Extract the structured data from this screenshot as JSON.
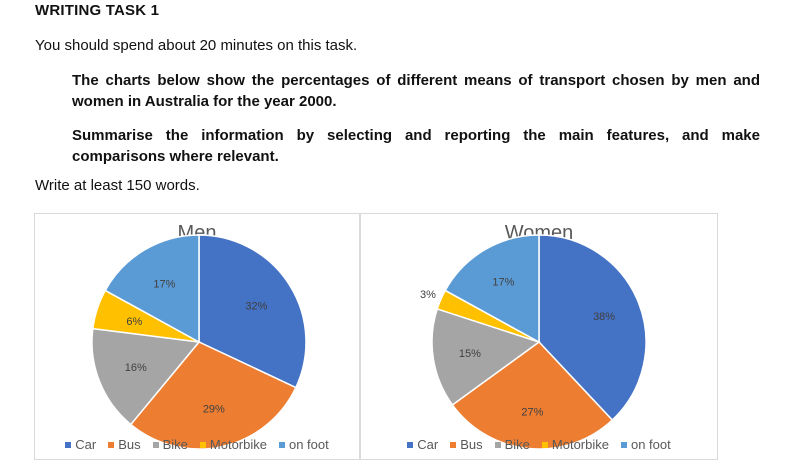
{
  "task": {
    "title": "WRITING TASK 1",
    "intro": "You should spend about 20 minutes on this task.",
    "prompt1": "The charts below show the percentages of different means of transport chosen by men and women in Australia for the year 2000.",
    "prompt2": "Summarise the information by selecting and reporting the main features, and make comparisons where relevant.",
    "word_count": "Write at least 150 words."
  },
  "colors": {
    "Car": "#4472c4",
    "Bus": "#ed7d31",
    "Bike": "#a5a5a5",
    "Motorbike": "#ffc000",
    "on foot": "#5b9bd5"
  },
  "chart_data": [
    {
      "type": "pie",
      "title": "Men",
      "categories": [
        "Car",
        "Bus",
        "Bike",
        "Motorbike",
        "on foot"
      ],
      "values": [
        32,
        29,
        16,
        6,
        17
      ],
      "labels": [
        "32%",
        "29%",
        "16%",
        "6%",
        "17%"
      ],
      "legend": "bottom"
    },
    {
      "type": "pie",
      "title": "Women",
      "categories": [
        "Car",
        "Bus",
        "Bike",
        "Motorbike",
        "on foot"
      ],
      "values": [
        38,
        27,
        15,
        3,
        17
      ],
      "labels": [
        "38%",
        "27%",
        "15%",
        "3%",
        "17%"
      ],
      "legend": "bottom"
    }
  ]
}
